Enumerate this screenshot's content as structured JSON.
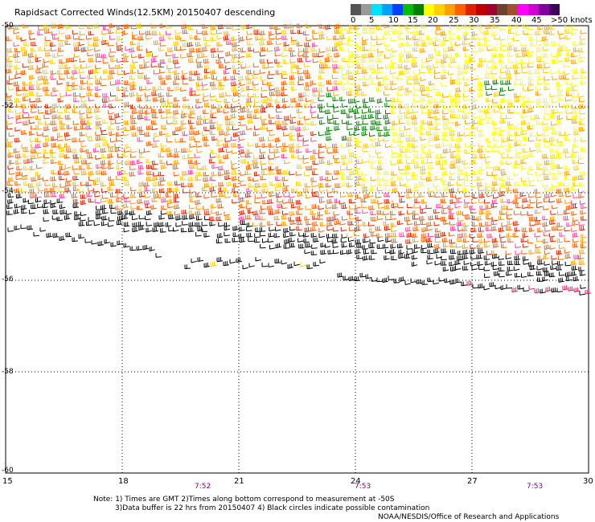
{
  "title": "Rapidsact Corrected Winds(12.5KM) 20150407 descending",
  "colorbar": {
    "colors": [
      "#555555",
      "#999999",
      "#00e0ff",
      "#00a0ff",
      "#0040ff",
      "#00c000",
      "#008000",
      "#ffff00",
      "#ffd000",
      "#ffa000",
      "#ff6000",
      "#e02000",
      "#c00000",
      "#a00030",
      "#704030",
      "#a0522d",
      "#ff00ff",
      "#d000d0",
      "#8000a0",
      "#400060"
    ],
    "labels": [
      "0",
      "5",
      "10",
      "15",
      "20",
      "25",
      "30",
      "35",
      "40",
      "45",
      ">50 knots"
    ]
  },
  "lat_labels": [
    "-50",
    "-52",
    "-54",
    "-56",
    "-58",
    "-60"
  ],
  "lon_labels": [
    "15",
    "18",
    "21",
    "24",
    "27",
    "30"
  ],
  "time_labels": [
    "7:52",
    "7:53",
    "7:53"
  ],
  "notes": {
    "line1": "Note: 1) Times are GMT 2)Times along bottom correspond to measurement at -50S",
    "line2": "3)Data buffer is 22 hrs from 20150407 4) Black circles indicate possible contamination",
    "credit": "NOAA/NESDIS/Office of Research and Applications"
  }
}
